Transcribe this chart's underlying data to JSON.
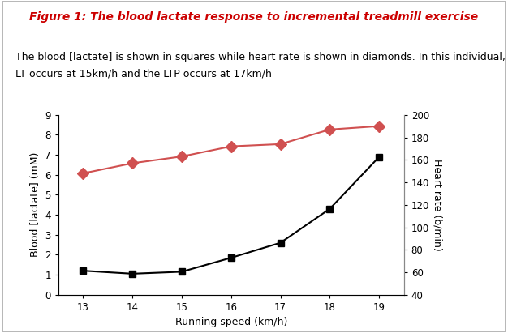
{
  "title": "Figure 1: The blood lactate response to incremental treadmill exercise",
  "subtitle_line1": "The blood [lactate] is shown in squares while heart rate is shown in diamonds. In this individual, the",
  "subtitle_line2": "LT occurs at 15km/h and the LTP occurs at 17km/h",
  "xlabel": "Running speed (km/h)",
  "ylabel_left": "Blood [lactate] (mM)",
  "ylabel_right": "Heart rate (b/min)",
  "speeds": [
    13,
    14,
    15,
    16,
    17,
    18,
    19
  ],
  "lactate": [
    1.2,
    1.05,
    1.15,
    1.85,
    2.6,
    4.3,
    6.9
  ],
  "heart_rate_actual": [
    148,
    157,
    163,
    172,
    174,
    187,
    190
  ],
  "lactate_color": "#000000",
  "hr_color": "#d05050",
  "title_color": "#cc0000",
  "ylim_left": [
    0,
    9
  ],
  "ylim_right": [
    40,
    200
  ],
  "yticks_left": [
    0,
    1,
    2,
    3,
    4,
    5,
    6,
    7,
    8,
    9
  ],
  "yticks_right": [
    40,
    60,
    80,
    100,
    120,
    140,
    160,
    180,
    200
  ],
  "background_color": "#ffffff",
  "border_color": "#aaaaaa",
  "title_fontsize": 10,
  "subtitle_fontsize": 9,
  "axis_label_fontsize": 9,
  "tick_fontsize": 8.5
}
